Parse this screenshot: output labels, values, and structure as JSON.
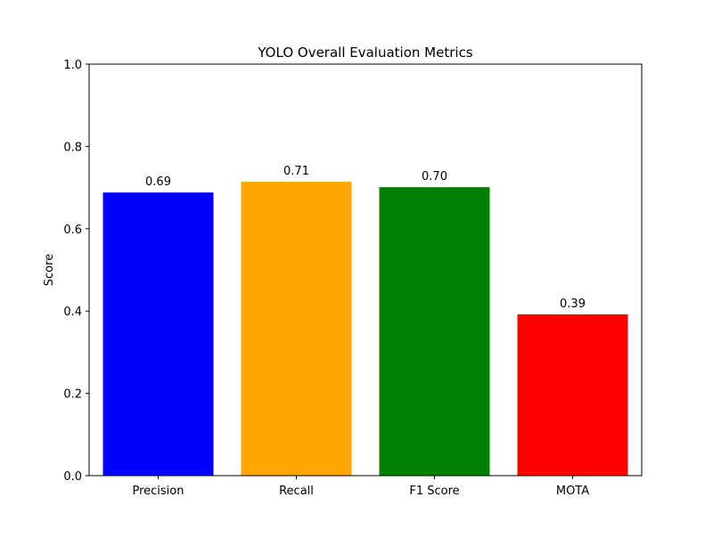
{
  "chart_data": {
    "type": "bar",
    "title": "YOLO Overall Evaluation Metrics",
    "xlabel": "",
    "ylabel": "Score",
    "categories": [
      "Precision",
      "Recall",
      "F1 Score",
      "MOTA"
    ],
    "values": [
      0.688,
      0.714,
      0.701,
      0.392
    ],
    "value_labels": [
      "0.69",
      "0.71",
      "0.70",
      "0.39"
    ],
    "colors": [
      "#0000ff",
      "#ffa500",
      "#008000",
      "#ff0000"
    ],
    "ylim": [
      0,
      1.0
    ],
    "yticks": [
      0.0,
      0.2,
      0.4,
      0.6,
      0.8,
      1.0
    ],
    "ytick_labels": [
      "0.0",
      "0.2",
      "0.4",
      "0.6",
      "0.8",
      "1.0"
    ],
    "grid": false,
    "legend": null
  }
}
